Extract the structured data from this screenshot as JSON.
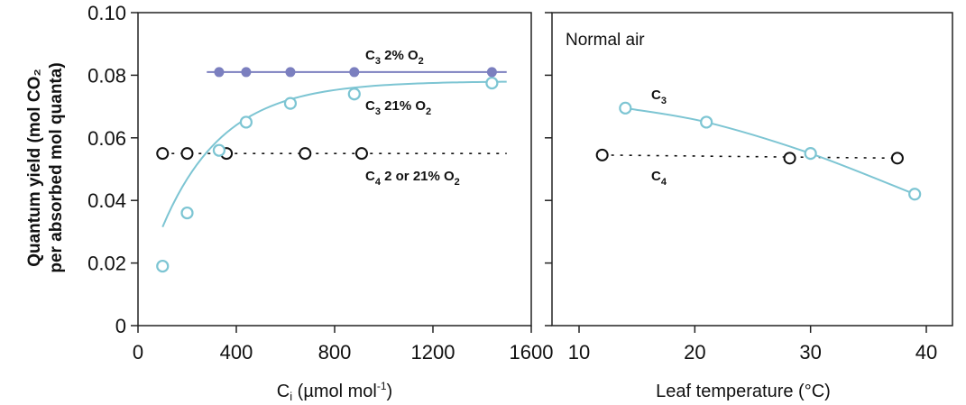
{
  "y_axis": {
    "title_line1": "Quantum yield (mol CO₂",
    "title_line2": "per absorbed mol quanta)"
  },
  "colors": {
    "c3_low_o2": "#7b7fbf",
    "c3_normal": "#7dc5d3",
    "c4": "#111111",
    "axis": "#222222"
  },
  "chart_data": [
    {
      "type": "scatter",
      "xlabel_main": "C",
      "xlabel_sub": "i",
      "xlabel_rest": " (µmol mol",
      "xlabel_sup": "-1",
      "xlabel_end": ")",
      "ylabel": "Quantum yield (mol CO₂ per absorbed mol quanta)",
      "xlim": [
        0,
        1600
      ],
      "ylim": [
        0,
        0.1
      ],
      "xticks": [
        0,
        400,
        800,
        1200,
        1600
      ],
      "yticks": [
        "0",
        "0.02",
        "0.04",
        "0.06",
        "0.08",
        "0.10"
      ],
      "ytick_values": [
        0,
        0.02,
        0.04,
        0.06,
        0.08,
        0.1
      ],
      "grid": false,
      "series": [
        {
          "name": "C3 2% O2",
          "label": {
            "c": "C",
            "sub1": "3",
            "mid": " 2% O",
            "sub2": "2"
          },
          "marker": "filled-circle",
          "line": "solid",
          "line_x": [
            280,
            1500
          ],
          "points": [
            [
              330,
              0.081
            ],
            [
              440,
              0.081
            ],
            [
              620,
              0.081
            ],
            [
              880,
              0.081
            ],
            [
              1440,
              0.081
            ]
          ]
        },
        {
          "name": "C3 21% O2",
          "label": {
            "c": "C",
            "sub1": "3",
            "mid": " 21% O",
            "sub2": "2"
          },
          "marker": "open-circle",
          "line": "solid-curve",
          "curve_x": [
            100,
            1500
          ],
          "points": [
            [
              100,
              0.019
            ],
            [
              200,
              0.036
            ],
            [
              330,
              0.056
            ],
            [
              440,
              0.065
            ],
            [
              620,
              0.071
            ],
            [
              880,
              0.074
            ],
            [
              1440,
              0.0775
            ]
          ]
        },
        {
          "name": "C4 2 or 21% O2",
          "label": {
            "c": "C",
            "sub1": "4",
            "mid": " 2 or 21% O",
            "sub2": "2"
          },
          "marker": "open-circle",
          "line": "dotted",
          "line_x": [
            100,
            1500
          ],
          "points": [
            [
              100,
              0.055
            ],
            [
              200,
              0.055
            ],
            [
              360,
              0.055
            ],
            [
              680,
              0.055
            ],
            [
              910,
              0.055
            ]
          ]
        }
      ]
    },
    {
      "type": "scatter",
      "xlabel": "Leaf temperature (°C)",
      "annotation": "Normal air",
      "xlim": [
        7,
        42
      ],
      "ylim": [
        0,
        0.1
      ],
      "xticks": [
        10,
        20,
        30,
        40
      ],
      "grid": false,
      "series": [
        {
          "name": "C3",
          "label": {
            "c": "C",
            "sub1": "3"
          },
          "marker": "open-circle",
          "line": "solid-curve",
          "points": [
            [
              14,
              0.0695
            ],
            [
              21,
              0.065
            ],
            [
              30,
              0.055
            ],
            [
              39,
              0.042
            ]
          ]
        },
        {
          "name": "C4",
          "label": {
            "c": "C",
            "sub1": "4"
          },
          "marker": "open-circle",
          "line": "dotted",
          "points": [
            [
              12,
              0.0545
            ],
            [
              28.2,
              0.0535
            ],
            [
              37.5,
              0.0535
            ]
          ]
        }
      ]
    }
  ]
}
